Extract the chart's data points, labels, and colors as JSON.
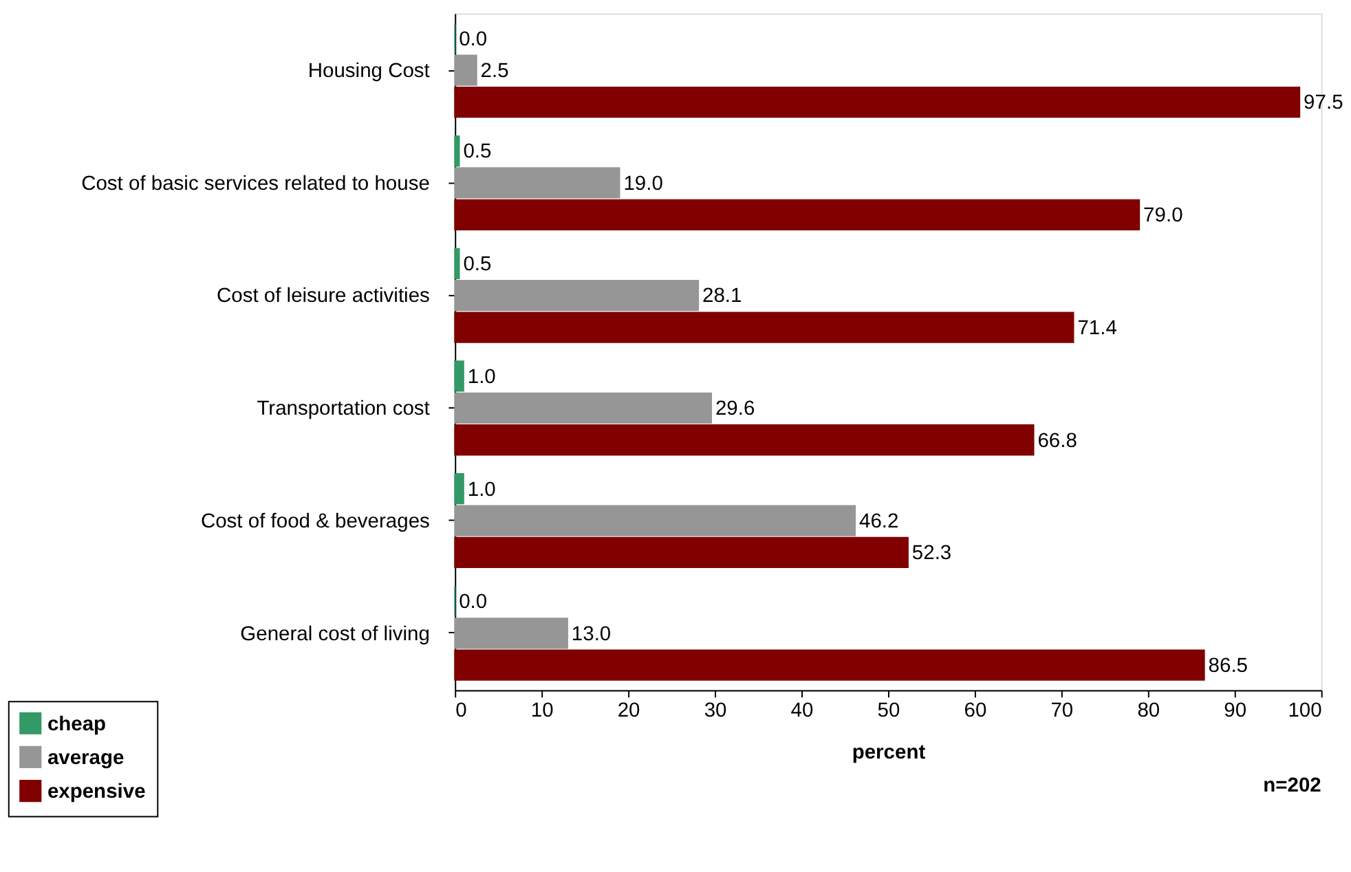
{
  "chart_data": {
    "type": "bar",
    "orientation": "horizontal",
    "xlabel": "percent",
    "categories": [
      "Housing Cost",
      "Cost of basic services related to house",
      "Cost of leisure activities",
      "Transportation cost",
      "Cost of food & beverages",
      "General cost of living"
    ],
    "series": [
      {
        "name": "cheap",
        "color": "#339966",
        "values": [
          0,
          0.5,
          0.5,
          1,
          1,
          0
        ],
        "value_labels": [
          "0.0",
          "0.5",
          "0.5",
          "1.0",
          "1.0",
          "0.0"
        ]
      },
      {
        "name": "average",
        "color": "#969696",
        "values": [
          2.5,
          19,
          28.1,
          29.6,
          46.2,
          13
        ],
        "value_labels": [
          "2.5",
          "19.0",
          "28.1",
          "29.6",
          "46.2",
          "13.0"
        ]
      },
      {
        "name": "expensive",
        "color": "#800000",
        "values": [
          97.5,
          79,
          71.4,
          66.8,
          52.3,
          86.5
        ],
        "value_labels": [
          "97.5",
          "79.0",
          "71.4",
          "66.8",
          "52.3",
          "86.5"
        ]
      }
    ],
    "xlim": [
      0,
      100
    ],
    "xticks": [
      0,
      10,
      20,
      30,
      40,
      50,
      60,
      70,
      80,
      90,
      100
    ],
    "grid": false,
    "legend": "bottom left",
    "annotations": [
      "n=202"
    ]
  }
}
